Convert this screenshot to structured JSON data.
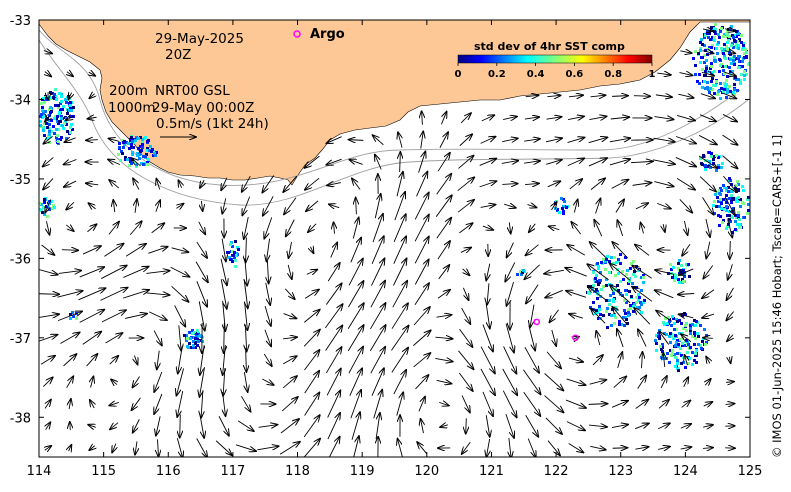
{
  "map": {
    "date_line": "29-May-2025",
    "time_line": "20Z",
    "depth_lines": [
      "200m",
      "1000m"
    ],
    "product_line1": "NRT00 GSL",
    "product_line2": "29-May 00:00Z",
    "scale_label": "0.5m/s (1kt 24h)",
    "argo_label": "Argo",
    "credit": "© IMOS 01-Jun-2025 15:46 Hobart; Tscale=CARS+[-1 1]",
    "colorbar": {
      "title": "std dev of 4hr SST comp",
      "ticks": [
        "0",
        "0.2",
        "0.4",
        "0.6",
        "0.8",
        "1"
      ]
    },
    "x_ticks": [
      "114",
      "115",
      "116",
      "117",
      "118",
      "119",
      "120",
      "121",
      "122",
      "123",
      "124",
      "125"
    ],
    "y_ticks": [
      "-33",
      "-34",
      "-35",
      "-36",
      "-37",
      "-38"
    ],
    "land_color": "#fdc896",
    "argo_color": "#ff00ff"
  },
  "chart_data": {
    "type": "map",
    "xlim": [
      114,
      125
    ],
    "ylim": [
      -38.5,
      -33
    ],
    "argo_floats": [
      {
        "lon": 121.7,
        "lat": -36.8
      },
      {
        "lon": 122.3,
        "lat": -37.0
      }
    ],
    "colorbar_range": [
      0,
      1
    ]
  }
}
